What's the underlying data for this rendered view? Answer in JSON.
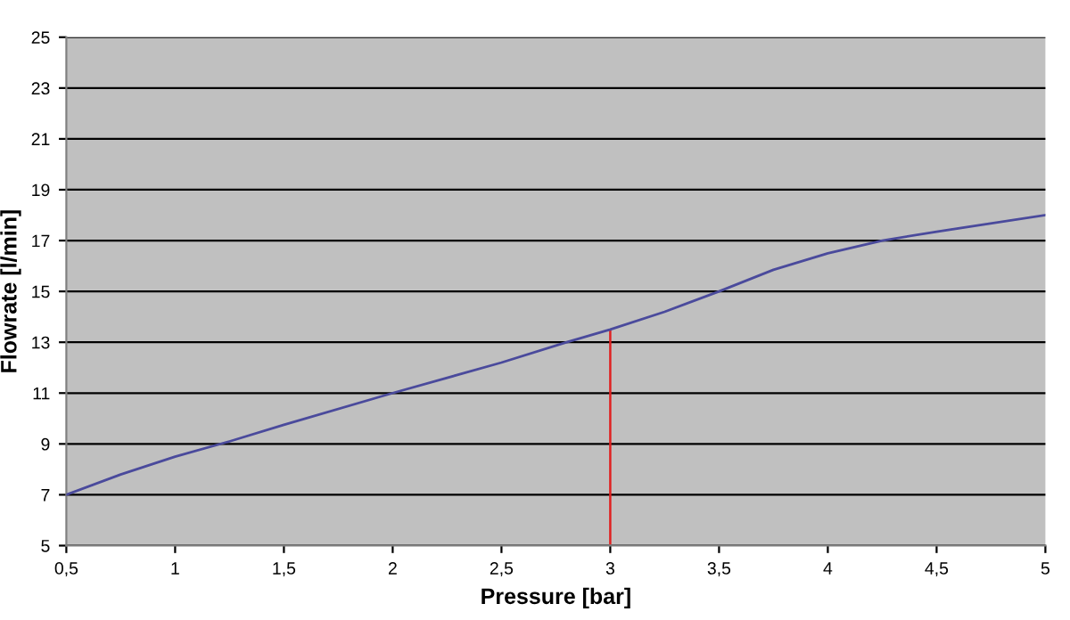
{
  "chart_data": {
    "type": "line",
    "xlabel": "Pressure [bar]",
    "ylabel": "Flowrate [l/min]",
    "x": [
      0.5,
      0.75,
      1,
      1.25,
      1.5,
      2,
      2.5,
      2.8,
      3,
      3.25,
      3.5,
      3.75,
      4,
      4.25,
      4.5,
      5
    ],
    "series": [
      {
        "color": "#4a4a9c",
        "values": [
          7,
          7.8,
          8.5,
          9.1,
          9.75,
          11,
          12.2,
          13,
          13.5,
          14.2,
          15,
          15.85,
          16.5,
          17,
          17.35,
          18
        ]
      }
    ],
    "xlim": [
      0.5,
      5
    ],
    "ylim": [
      5,
      25
    ],
    "xticks": [
      {
        "value": 0.5,
        "label": "0,5"
      },
      1,
      {
        "value": 1.5,
        "label": "1,5"
      },
      2,
      {
        "value": 2.5,
        "label": "2,5"
      },
      3,
      {
        "value": 3.5,
        "label": "3,5"
      },
      4,
      {
        "value": 4.5,
        "label": "4,5"
      },
      5
    ],
    "yticks": [
      5,
      7,
      9,
      11,
      13,
      15,
      17,
      19,
      21,
      23,
      25
    ],
    "ref_lines": [
      {
        "axis": "x",
        "value": 3,
        "color": "#e02020"
      }
    ],
    "grid": "y",
    "marker": "none",
    "line_style": "solid",
    "legend": false
  }
}
